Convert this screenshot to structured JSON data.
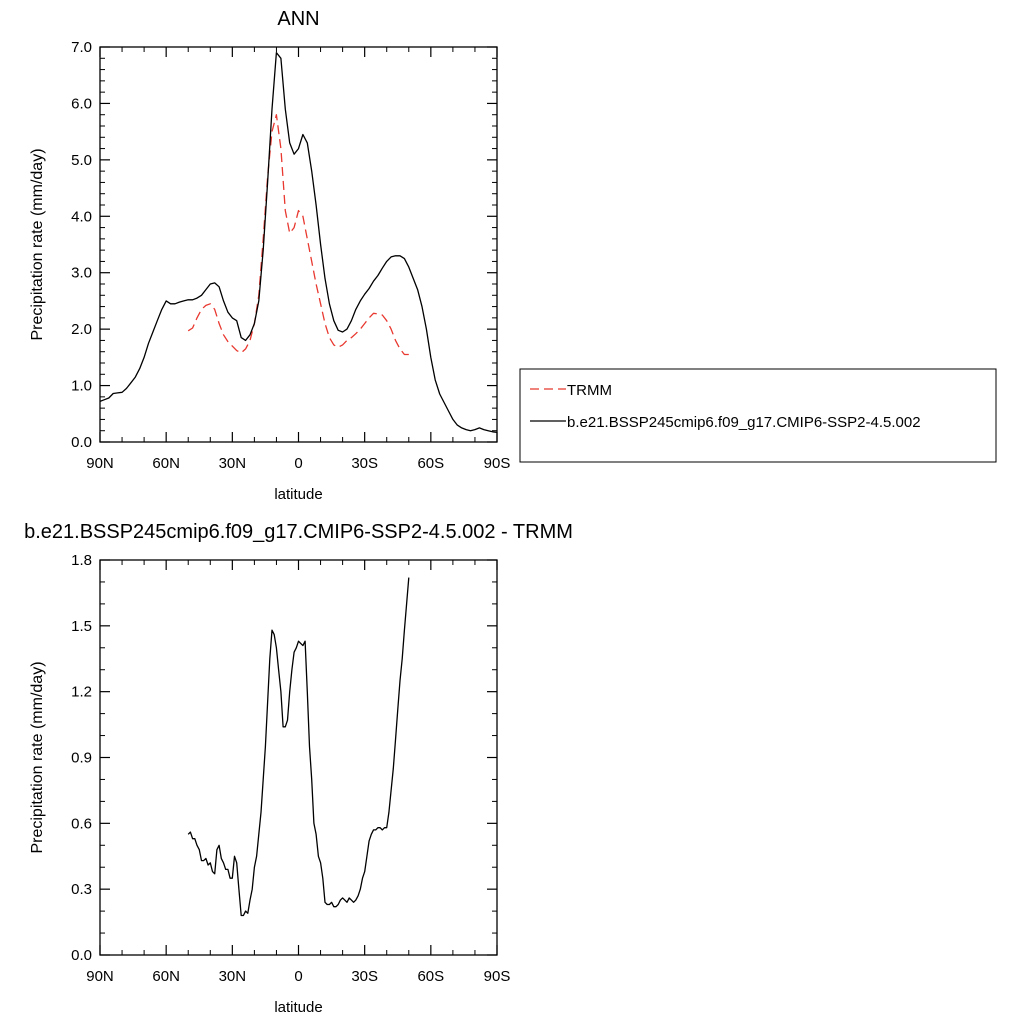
{
  "chart_data": [
    {
      "type": "line",
      "title": "ANN",
      "xlabel": "latitude",
      "ylabel": "Precipitation rate (mm/day)",
      "xlim": [
        90,
        -90
      ],
      "ylim": [
        0,
        7
      ],
      "xticks": [
        90,
        60,
        30,
        0,
        -30,
        -60,
        -90
      ],
      "xtick_labels": [
        "90N",
        "60N",
        "30N",
        "0",
        "30S",
        "60S",
        "90S"
      ],
      "yticks": [
        0,
        1,
        2,
        3,
        4,
        5,
        6,
        7
      ],
      "ytick_labels": [
        "0.0",
        "1.0",
        "2.0",
        "3.0",
        "4.0",
        "5.0",
        "6.0",
        "7.0"
      ],
      "grid": false,
      "legend": {
        "position": "right",
        "border": true
      },
      "series": [
        {
          "name": "TRMM",
          "color": "#e8382f",
          "dash": "dashed",
          "x": [
            50,
            48,
            46,
            44,
            42,
            40,
            38,
            36,
            34,
            32,
            30,
            28,
            26,
            24,
            22,
            20,
            18,
            16,
            14,
            12,
            10,
            8,
            6,
            4,
            2,
            0,
            -2,
            -4,
            -6,
            -8,
            -10,
            -12,
            -14,
            -16,
            -18,
            -20,
            -22,
            -24,
            -26,
            -28,
            -30,
            -32,
            -34,
            -36,
            -38,
            -40,
            -42,
            -44,
            -46,
            -48,
            -50
          ],
          "y": [
            1.97,
            2.02,
            2.2,
            2.35,
            2.42,
            2.45,
            2.35,
            2.1,
            1.9,
            1.78,
            1.7,
            1.62,
            1.58,
            1.65,
            1.8,
            2.1,
            2.6,
            3.6,
            4.7,
            5.5,
            5.8,
            5.2,
            4.1,
            3.7,
            3.8,
            4.1,
            4.0,
            3.6,
            3.2,
            2.8,
            2.45,
            2.1,
            1.85,
            1.72,
            1.68,
            1.72,
            1.8,
            1.85,
            1.92,
            2.0,
            2.1,
            2.2,
            2.28,
            2.27,
            2.25,
            2.15,
            2.0,
            1.8,
            1.65,
            1.55,
            1.55
          ]
        },
        {
          "name": "b.e21.BSSP245cmip6.f09_g17.CMIP6-SSP2-4.5.002",
          "color": "#000000",
          "dash": "solid",
          "x": [
            90,
            88,
            86,
            84,
            82,
            80,
            78,
            76,
            74,
            72,
            70,
            68,
            66,
            64,
            62,
            60,
            58,
            56,
            54,
            52,
            50,
            48,
            46,
            44,
            42,
            40,
            38,
            36,
            34,
            32,
            30,
            28,
            26,
            24,
            22,
            20,
            18,
            16,
            14,
            12,
            10,
            8,
            6,
            4,
            2,
            0,
            -2,
            -4,
            -6,
            -8,
            -10,
            -12,
            -14,
            -16,
            -18,
            -20,
            -22,
            -24,
            -26,
            -28,
            -30,
            -32,
            -34,
            -36,
            -38,
            -40,
            -42,
            -44,
            -46,
            -48,
            -50,
            -52,
            -54,
            -56,
            -58,
            -60,
            -62,
            -64,
            -66,
            -68,
            -70,
            -72,
            -74,
            -76,
            -78,
            -80,
            -82,
            -84,
            -86,
            -88,
            -90
          ],
          "y": [
            0.72,
            0.75,
            0.78,
            0.86,
            0.87,
            0.88,
            0.95,
            1.05,
            1.15,
            1.3,
            1.5,
            1.75,
            1.95,
            2.15,
            2.35,
            2.5,
            2.45,
            2.45,
            2.48,
            2.5,
            2.52,
            2.52,
            2.55,
            2.6,
            2.7,
            2.8,
            2.82,
            2.75,
            2.5,
            2.3,
            2.2,
            2.15,
            1.85,
            1.8,
            1.9,
            2.1,
            2.5,
            3.4,
            4.6,
            5.9,
            6.9,
            6.8,
            5.9,
            5.3,
            5.1,
            5.2,
            5.45,
            5.3,
            4.8,
            4.2,
            3.5,
            2.9,
            2.45,
            2.15,
            1.98,
            1.95,
            2.0,
            2.15,
            2.35,
            2.5,
            2.62,
            2.72,
            2.85,
            2.95,
            3.08,
            3.2,
            3.28,
            3.3,
            3.3,
            3.25,
            3.1,
            2.9,
            2.7,
            2.4,
            2.0,
            1.5,
            1.1,
            0.85,
            0.7,
            0.55,
            0.4,
            0.3,
            0.25,
            0.22,
            0.2,
            0.22,
            0.25,
            0.22,
            0.2,
            0.18,
            0.17
          ]
        }
      ]
    },
    {
      "type": "line",
      "title": "b.e21.BSSP245cmip6.f09_g17.CMIP6-SSP2-4.5.002 - TRMM",
      "xlabel": "latitude",
      "ylabel": "Precipitation rate (mm/day)",
      "xlim": [
        90,
        -90
      ],
      "ylim": [
        0,
        1.8
      ],
      "xticks": [
        90,
        60,
        30,
        0,
        -30,
        -60,
        -90
      ],
      "xtick_labels": [
        "90N",
        "60N",
        "30N",
        "0",
        "30S",
        "60S",
        "90S"
      ],
      "yticks": [
        0,
        0.3,
        0.6,
        0.9,
        1.2,
        1.5,
        1.8
      ],
      "ytick_labels": [
        "0.0",
        "0.3",
        "0.6",
        "0.9",
        "1.2",
        "1.5",
        "1.8"
      ],
      "grid": false,
      "series": [
        {
          "color": "#000000",
          "dash": "solid",
          "x": [
            50,
            49,
            48,
            47,
            46,
            45,
            44,
            43,
            42,
            41,
            40,
            39,
            38,
            37,
            36,
            35,
            34,
            33,
            32,
            31,
            30,
            29,
            28,
            27,
            26,
            25,
            24,
            23,
            22,
            21,
            20,
            19,
            18,
            17,
            16,
            15,
            14,
            13,
            12,
            11,
            10,
            9,
            8,
            7,
            6,
            5,
            4,
            3,
            2,
            1,
            0,
            -1,
            -2,
            -3,
            -4,
            -5,
            -6,
            -7,
            -8,
            -9,
            -10,
            -11,
            -12,
            -13,
            -14,
            -15,
            -16,
            -17,
            -18,
            -19,
            -20,
            -21,
            -22,
            -23,
            -24,
            -25,
            -26,
            -27,
            -28,
            -29,
            -30,
            -31,
            -32,
            -33,
            -34,
            -35,
            -36,
            -37,
            -38,
            -39,
            -40,
            -41,
            -42,
            -43,
            -44,
            -45,
            -46,
            -47,
            -48,
            -49,
            -50
          ],
          "y": [
            0.55,
            0.56,
            0.53,
            0.53,
            0.5,
            0.48,
            0.43,
            0.43,
            0.44,
            0.41,
            0.42,
            0.38,
            0.37,
            0.48,
            0.5,
            0.44,
            0.42,
            0.39,
            0.39,
            0.35,
            0.35,
            0.45,
            0.42,
            0.3,
            0.18,
            0.18,
            0.2,
            0.19,
            0.25,
            0.3,
            0.4,
            0.45,
            0.55,
            0.65,
            0.8,
            0.95,
            1.15,
            1.35,
            1.48,
            1.46,
            1.4,
            1.3,
            1.2,
            1.04,
            1.04,
            1.07,
            1.2,
            1.3,
            1.38,
            1.4,
            1.43,
            1.42,
            1.41,
            1.43,
            1.2,
            0.95,
            0.8,
            0.6,
            0.55,
            0.45,
            0.42,
            0.35,
            0.24,
            0.23,
            0.23,
            0.24,
            0.22,
            0.22,
            0.23,
            0.25,
            0.26,
            0.25,
            0.24,
            0.26,
            0.25,
            0.24,
            0.25,
            0.27,
            0.3,
            0.35,
            0.38,
            0.45,
            0.52,
            0.55,
            0.57,
            0.57,
            0.58,
            0.58,
            0.57,
            0.58,
            0.58,
            0.65,
            0.75,
            0.85,
            0.98,
            1.12,
            1.25,
            1.35,
            1.48,
            1.6,
            1.72
          ]
        }
      ]
    }
  ]
}
